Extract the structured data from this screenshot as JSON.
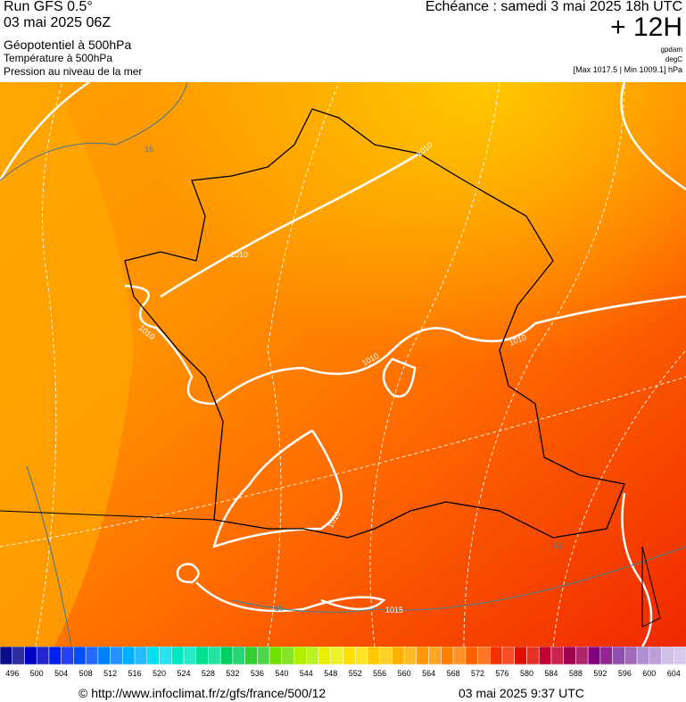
{
  "header": {
    "run": "Run GFS 0.5°",
    "date": "03 mai 2025 06Z",
    "field1": "Géopotentiel à 500hPa",
    "field2": "Température à 500hPa",
    "field3": "Pression au niveau de la mer",
    "valid": "Echéance : samedi 3 mai 2025 18h UTC",
    "lead": "+ 12H",
    "unit1": "gpdam",
    "unit2": "degC",
    "range": "[Max 1017.5 | Min 1009.1] hPa"
  },
  "map": {
    "labels": [
      "16",
      "16",
      "16",
      "1010",
      "1010",
      "1010",
      "1010",
      "1010",
      "1010",
      "1015"
    ]
  },
  "legend": {
    "labels": [
      496,
      500,
      504,
      508,
      512,
      516,
      520,
      524,
      528,
      532,
      536,
      540,
      544,
      548,
      552,
      556,
      560,
      564,
      568,
      572,
      576,
      580,
      584,
      588,
      592,
      596,
      600,
      604
    ],
    "colors": [
      "#0a0a8c",
      "#0000c8",
      "#0020f0",
      "#0050ff",
      "#0080ff",
      "#00b0ff",
      "#00e0f0",
      "#00e8c0",
      "#00e090",
      "#00d060",
      "#30d030",
      "#70e000",
      "#b0f000",
      "#e8f000",
      "#ffe000",
      "#ffc800",
      "#ffb000",
      "#ff9800",
      "#ff8000",
      "#ff6000",
      "#f83000",
      "#e01000",
      "#c00030",
      "#a00050",
      "#800080",
      "#9050b0",
      "#b090d0",
      "#d0c0e8"
    ]
  },
  "footer": {
    "source": "© http://www.infoclimat.fr/z/gfs/france/500/12",
    "time": "03 mai 2025  9:37 UTC"
  }
}
